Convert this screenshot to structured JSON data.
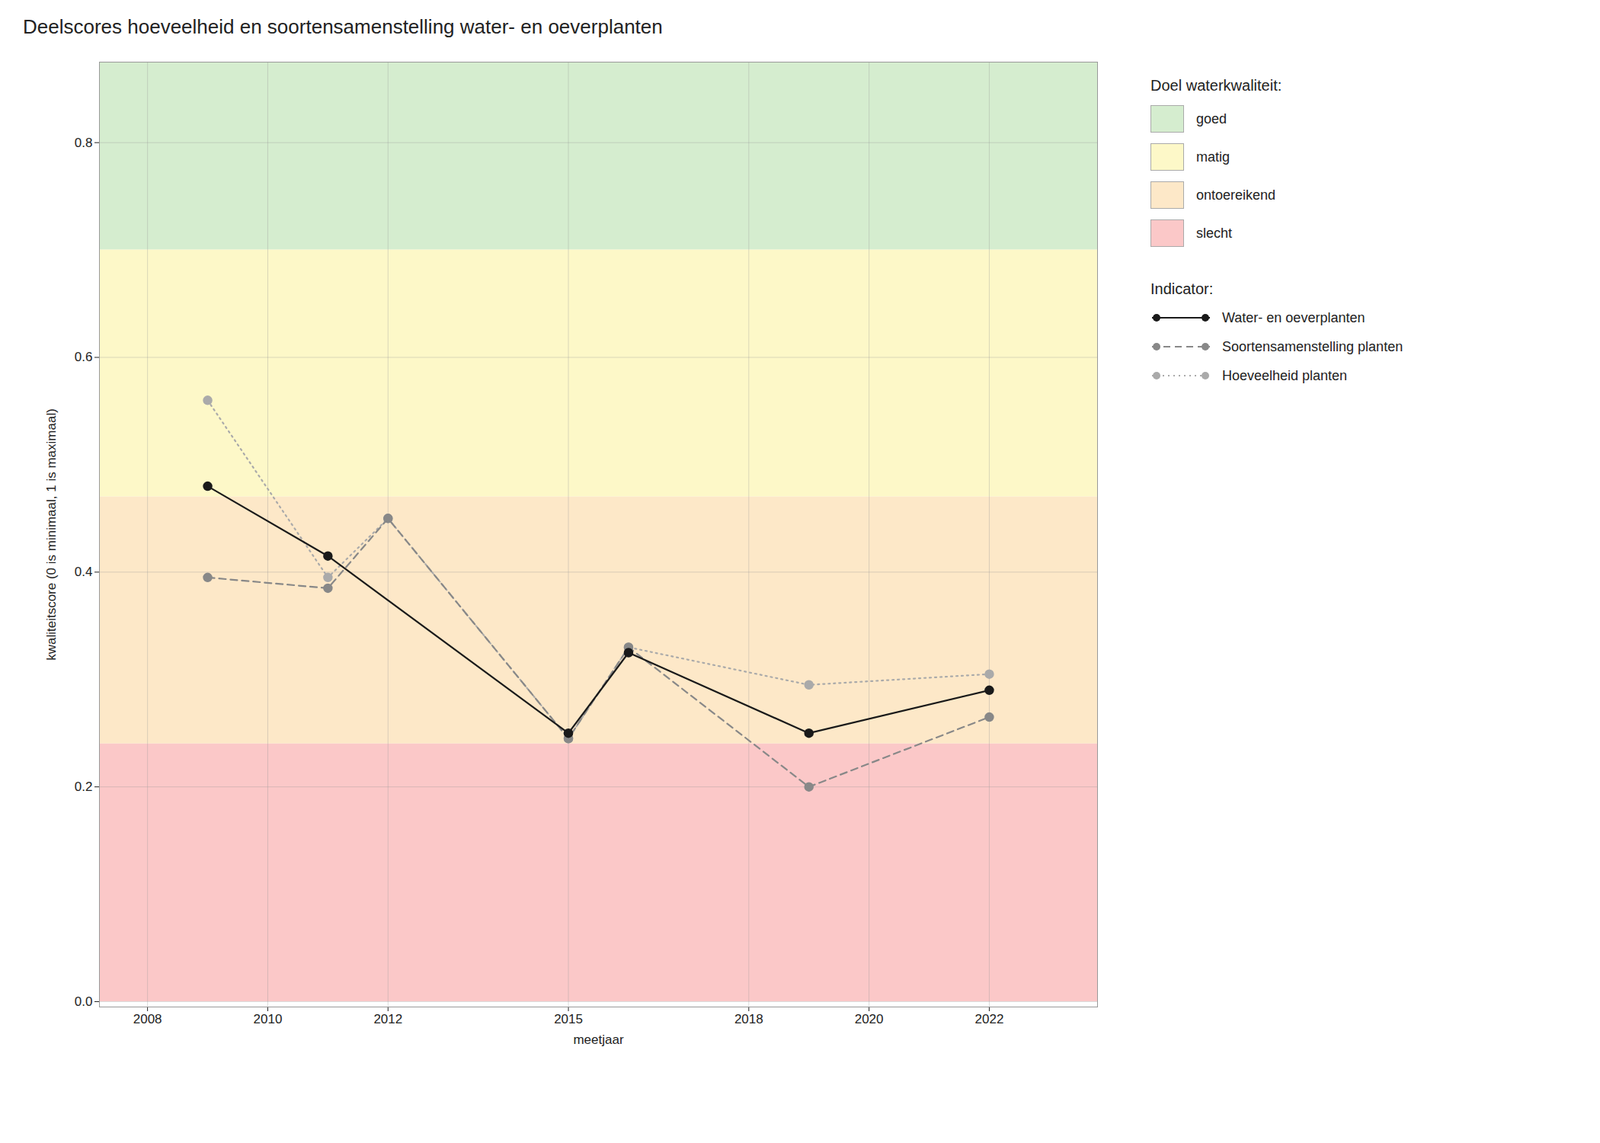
{
  "chart_data": {
    "type": "line",
    "title": "Deelscores hoeveelheid en soortensamenstelling water- en oeverplanten",
    "x_label": "meetjaar",
    "y_label": "kwaliteitscore (0 is minimaal, 1 is maximaal)",
    "xlim": [
      2007.2,
      2023.8
    ],
    "ylim": [
      -0.005,
      0.875
    ],
    "xticks": [
      2008,
      2010,
      2012,
      2015,
      2018,
      2020,
      2022
    ],
    "yticks": [
      {
        "value": 0.0,
        "label": "0.0"
      },
      0.2,
      0.4,
      0.6,
      0.8
    ],
    "grid": true,
    "quality_legend_title": "Doel waterkwaliteit:",
    "series_legend_title": "Indicator:",
    "quality_bands": [
      {
        "name": "goed",
        "ymin": 0.7,
        "ymax": 0.875,
        "color": "#d5edcf"
      },
      {
        "name": "matig",
        "ymin": 0.47,
        "ymax": 0.7,
        "color": "#fdf8c8"
      },
      {
        "name": "ontoereikend",
        "ymin": 0.24,
        "ymax": 0.47,
        "color": "#fde8c8"
      },
      {
        "name": "slecht",
        "ymin": 0.0,
        "ymax": 0.24,
        "color": "#fbc8c8"
      }
    ],
    "series": [
      {
        "name": "Water- en oeverplanten",
        "color": "#1a1a1a",
        "line_style": "solid",
        "marker": "circle",
        "x": [
          2009,
          2011,
          2015,
          2016,
          2019,
          2022
        ],
        "values": [
          0.48,
          0.415,
          0.25,
          0.325,
          0.25,
          0.29
        ]
      },
      {
        "name": "Soortensamenstelling planten",
        "color": "#888888",
        "line_style": "dashed",
        "marker": "circle",
        "x": [
          2009,
          2011,
          2012,
          2015,
          2016,
          2019,
          2022
        ],
        "values": [
          0.395,
          0.385,
          0.45,
          0.245,
          0.33,
          0.2,
          0.265
        ]
      },
      {
        "name": "Hoeveelheid planten",
        "color": "#aaaaaa",
        "line_style": "dotted",
        "marker": "circle",
        "x": [
          2009,
          2011,
          2012,
          2015,
          2016,
          2019,
          2022
        ],
        "values": [
          0.56,
          0.395,
          0.45,
          0.245,
          0.33,
          0.295,
          0.305
        ]
      }
    ]
  }
}
